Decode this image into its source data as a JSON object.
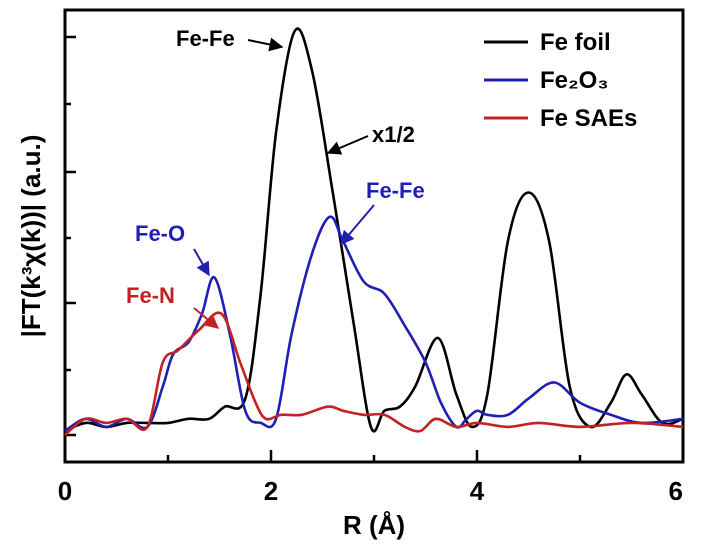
{
  "chart_data": {
    "type": "line",
    "xlabel": "R (Å)",
    "ylabel": "|FT(k³χ(k))| (a.u.)",
    "xlim": [
      0,
      6
    ],
    "ylim": [
      0,
      1.05
    ],
    "x_ticks": [
      "0",
      "2",
      "4",
      "6"
    ],
    "colors": {
      "fe_foil": "#000000",
      "fe2o3": "#1f1fb4",
      "fe_saes": "#c42222"
    },
    "legend": [
      "Fe foil",
      "Fe₂O₃",
      "Fe SAEs"
    ],
    "series": [
      {
        "name": "Fe foil",
        "x": [
          0.0,
          0.2,
          0.4,
          0.6,
          0.8,
          1.0,
          1.2,
          1.4,
          1.55,
          1.75,
          1.9,
          2.05,
          2.23,
          2.4,
          2.6,
          2.8,
          2.97,
          3.1,
          3.25,
          3.4,
          3.62,
          3.8,
          3.95,
          4.1,
          4.3,
          4.5,
          4.7,
          4.9,
          5.1,
          5.3,
          5.45,
          5.6,
          5.8,
          6.0
        ],
        "y": [
          0.01,
          0.03,
          0.02,
          0.03,
          0.03,
          0.03,
          0.04,
          0.04,
          0.07,
          0.09,
          0.35,
          0.75,
          1.0,
          0.9,
          0.6,
          0.28,
          0.02,
          0.06,
          0.07,
          0.12,
          0.24,
          0.1,
          0.02,
          0.1,
          0.48,
          0.6,
          0.48,
          0.12,
          0.02,
          0.08,
          0.15,
          0.1,
          0.03,
          0.04
        ]
      },
      {
        "name": "Fe₂O₃",
        "x": [
          0.0,
          0.2,
          0.4,
          0.6,
          0.8,
          0.95,
          1.05,
          1.2,
          1.33,
          1.45,
          1.6,
          1.75,
          1.9,
          2.05,
          2.2,
          2.4,
          2.57,
          2.7,
          2.9,
          3.1,
          3.3,
          3.5,
          3.65,
          3.8,
          3.9,
          4.0,
          4.1,
          4.3,
          4.5,
          4.75,
          5.0,
          5.3,
          5.6,
          6.0
        ],
        "y": [
          0.01,
          0.04,
          0.02,
          0.04,
          0.02,
          0.12,
          0.2,
          0.23,
          0.3,
          0.39,
          0.25,
          0.06,
          0.03,
          0.04,
          0.25,
          0.45,
          0.54,
          0.48,
          0.38,
          0.35,
          0.27,
          0.18,
          0.08,
          0.02,
          0.04,
          0.06,
          0.05,
          0.05,
          0.09,
          0.13,
          0.08,
          0.05,
          0.03,
          0.04
        ]
      },
      {
        "name": "Fe SAEs",
        "x": [
          0.0,
          0.2,
          0.4,
          0.6,
          0.8,
          0.95,
          1.1,
          1.3,
          1.52,
          1.7,
          1.85,
          1.95,
          2.1,
          2.3,
          2.55,
          2.7,
          2.9,
          3.1,
          3.3,
          3.45,
          3.6,
          3.8,
          4.0,
          4.3,
          4.6,
          5.0,
          5.5,
          6.0
        ],
        "y": [
          0.0,
          0.04,
          0.03,
          0.04,
          0.02,
          0.18,
          0.21,
          0.26,
          0.3,
          0.18,
          0.08,
          0.04,
          0.05,
          0.05,
          0.07,
          0.06,
          0.05,
          0.05,
          0.02,
          0.01,
          0.04,
          0.02,
          0.03,
          0.02,
          0.03,
          0.02,
          0.03,
          0.02
        ]
      }
    ],
    "annotations": [
      {
        "text": "Fe-Fe",
        "color": "#000000"
      },
      {
        "text": "x1/2",
        "color": "#000000"
      },
      {
        "text": "Fe-Fe",
        "color": "#1f1fb4"
      },
      {
        "text": "Fe-O",
        "color": "#1f1fb4"
      },
      {
        "text": "Fe-N",
        "color": "#c42222"
      }
    ]
  }
}
